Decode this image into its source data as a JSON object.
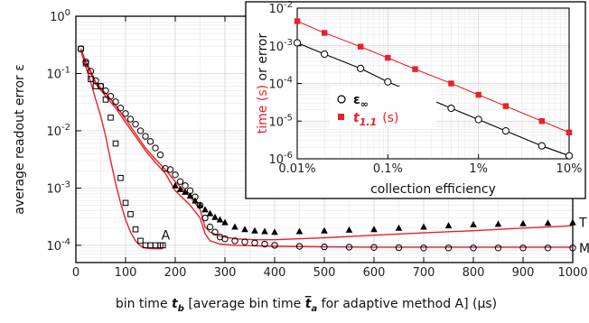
{
  "chart_data": [
    {
      "type": "line",
      "xlabel": "bin time t_b [average bin time t̄_a for adaptive method A] (μs)",
      "ylabel": "average readout error ε",
      "xlim": [
        0,
        1000
      ],
      "ylim": [
        5e-05,
        1
      ],
      "yscale": "log",
      "grid": true,
      "x_ticks": [
        "0",
        "100",
        "200",
        "300",
        "400",
        "500",
        "600",
        "700",
        "800",
        "900",
        "1000"
      ],
      "y_ticks": [
        "10^0",
        "10^-1",
        "10^-2",
        "10^-3",
        "10^-4"
      ],
      "annotations": [
        "A",
        "T",
        "M"
      ],
      "series": [
        {
          "name": "M",
          "marker": "circle",
          "color": "#000000",
          "x": [
            10,
            20,
            30,
            40,
            50,
            60,
            70,
            80,
            90,
            100,
            110,
            120,
            130,
            140,
            150,
            160,
            170,
            180,
            190,
            200,
            210,
            220,
            230,
            240,
            250,
            260,
            270,
            280,
            290,
            300,
            320,
            340,
            360,
            380,
            400,
            450,
            500,
            550,
            600,
            650,
            700,
            750,
            800,
            850,
            900,
            950,
            1000
          ],
          "y": [
            0.27,
            0.16,
            0.11,
            0.075,
            0.06,
            0.05,
            0.04,
            0.032,
            0.025,
            0.02,
            0.016,
            0.013,
            0.01,
            0.008,
            0.0065,
            0.005,
            0.0038,
            0.0022,
            0.0021,
            0.0017,
            0.0013,
            0.0011,
            0.0009,
            0.0007,
            0.0005,
            0.0003,
            0.00021,
            0.00017,
            0.00014,
            0.00013,
            0.00012,
            0.000115,
            0.00011,
            0.000105,
            0.0001,
            9.6e-05,
            9.4e-05,
            9.3e-05,
            9.2e-05,
            9.1e-05,
            9e-05,
            9e-05,
            9e-05,
            9e-05,
            9e-05,
            9e-05,
            9e-05
          ]
        },
        {
          "name": "T",
          "marker": "triangle",
          "color": "#000000",
          "x": [
            200,
            210,
            220,
            230,
            240,
            250,
            260,
            270,
            280,
            290,
            300,
            320,
            340,
            360,
            380,
            400,
            450,
            500,
            550,
            600,
            650,
            700,
            750,
            800,
            850,
            900,
            950,
            1000
          ],
          "y": [
            0.0011,
            0.00095,
            0.00085,
            0.00073,
            0.0006,
            0.0005,
            0.00042,
            0.00036,
            0.00031,
            0.00028,
            0.00025,
            0.00021,
            0.00019,
            0.00018,
            0.000175,
            0.00017,
            0.000175,
            0.00018,
            0.000185,
            0.00019,
            0.0002,
            0.00021,
            0.00022,
            0.00023,
            0.000235,
            0.00024,
            0.000245,
            0.00025
          ]
        },
        {
          "name": "A",
          "marker": "square",
          "color": "#000000",
          "x": [
            10,
            20,
            30,
            40,
            50,
            60,
            70,
            80,
            90,
            100,
            110,
            120,
            130,
            140,
            150,
            160,
            170,
            175
          ],
          "y": [
            0.27,
            0.15,
            0.08,
            0.06,
            0.06,
            0.035,
            0.017,
            0.006,
            0.0015,
            0.00055,
            0.00035,
            0.00019,
            0.00012,
            0.0001,
            0.0001,
            0.0001,
            0.0001,
            0.0001
          ]
        },
        {
          "name": "theory-upper",
          "marker": "none",
          "color": "#e8202a",
          "x": [
            10,
            20,
            30,
            40,
            60,
            80,
            100,
            120,
            140,
            160,
            180,
            200,
            230,
            250,
            260,
            270,
            290,
            320,
            360,
            400,
            500,
            600,
            700,
            800,
            900,
            1000
          ],
          "y": [
            0.27,
            0.16,
            0.11,
            0.07,
            0.045,
            0.028,
            0.016,
            0.009,
            0.005,
            0.0032,
            0.0021,
            0.0013,
            0.0007,
            0.00042,
            0.00021,
            0.00017,
            0.000145,
            0.00013,
            0.000125,
            0.000125,
            0.000135,
            0.00015,
            0.000165,
            0.00018,
            0.0002,
            0.00022
          ]
        },
        {
          "name": "theory-lower",
          "marker": "none",
          "color": "#e8202a",
          "x": [
            10,
            20,
            30,
            40,
            60,
            80,
            100,
            120,
            140,
            160,
            180,
            200,
            230,
            250,
            260,
            270,
            290,
            320,
            360,
            400,
            500,
            600,
            700,
            800,
            900,
            1000
          ],
          "y": [
            0.27,
            0.15,
            0.1,
            0.066,
            0.04,
            0.025,
            0.014,
            0.008,
            0.0045,
            0.0028,
            0.0018,
            0.0009,
            0.0005,
            0.0003,
            0.00016,
            0.00012,
            0.000105,
            0.0001,
            9.8e-05,
            9.6e-05,
            9.4e-05,
            9.3e-05,
            9.3e-05,
            9.3e-05,
            9.3e-05,
            9.3e-05
          ]
        },
        {
          "name": "theory-A",
          "marker": "none",
          "color": "#e8202a",
          "x": [
            10,
            20,
            30,
            40,
            50,
            60,
            70,
            80,
            90,
            100,
            110,
            120,
            130,
            140,
            150,
            160,
            175
          ],
          "y": [
            0.25,
            0.13,
            0.07,
            0.035,
            0.018,
            0.008,
            0.003,
            0.0012,
            0.00055,
            0.00028,
            0.00017,
            0.00012,
            9.7e-05,
            9e-05,
            8.8e-05,
            8.7e-05,
            8.7e-05
          ]
        }
      ]
    },
    {
      "type": "line",
      "xlabel": "collection efficiency",
      "ylabel": "time (s) or error",
      "xscale": "log",
      "yscale": "log",
      "xlim": [
        0.0001,
        0.1
      ],
      "ylim": [
        1e-06,
        0.01
      ],
      "grid": true,
      "x_ticks": [
        "0.01%",
        "0.1%",
        "1%",
        "10%"
      ],
      "y_ticks": [
        "10^-2",
        "10^-3",
        "10^-4",
        "10^-5",
        "10^-6"
      ],
      "legend": {
        "placement": "left",
        "entries": [
          "ε∞",
          "t1.1 (s)"
        ]
      },
      "series": [
        {
          "name": "ε∞",
          "marker": "circle",
          "color": "#000000",
          "x": [
            0.0001,
            0.0002,
            0.0005,
            0.001,
            0.002,
            0.005,
            0.01,
            0.02,
            0.05,
            0.1
          ],
          "y": [
            0.0012,
            0.0006,
            0.00025,
            0.00011,
            5.5e-05,
            2.2e-05,
            1.1e-05,
            5.5e-06,
            2.2e-06,
            1.2e-06
          ]
        },
        {
          "name": "t1.1 (s)",
          "marker": "square",
          "color": "#e8202a",
          "x": [
            0.0001,
            0.0002,
            0.0005,
            0.001,
            0.002,
            0.005,
            0.01,
            0.02,
            0.05,
            0.1
          ],
          "y": [
            0.0045,
            0.0022,
            0.00095,
            0.00048,
            0.00024,
            0.0001,
            5e-05,
            2.5e-05,
            1e-05,
            5e-06
          ]
        }
      ]
    }
  ],
  "labels": {
    "main_ylabel": "average readout error ε",
    "main_xlabel_parts": [
      "bin time ",
      "t",
      "b",
      " [average bin time ",
      "t",
      "a",
      " for adaptive method A] (μs)"
    ],
    "inset_ylabel_parts": [
      "time (s)",
      " or error"
    ],
    "inset_xlabel": "collection efficiency",
    "legend_eps_base": "ε",
    "legend_eps_sub": "∞",
    "legend_t_base": "t",
    "legend_t_sub": "1.1",
    "legend_t_unit": "(s)",
    "annot_A": "A",
    "annot_T": "T",
    "annot_M": "M"
  }
}
